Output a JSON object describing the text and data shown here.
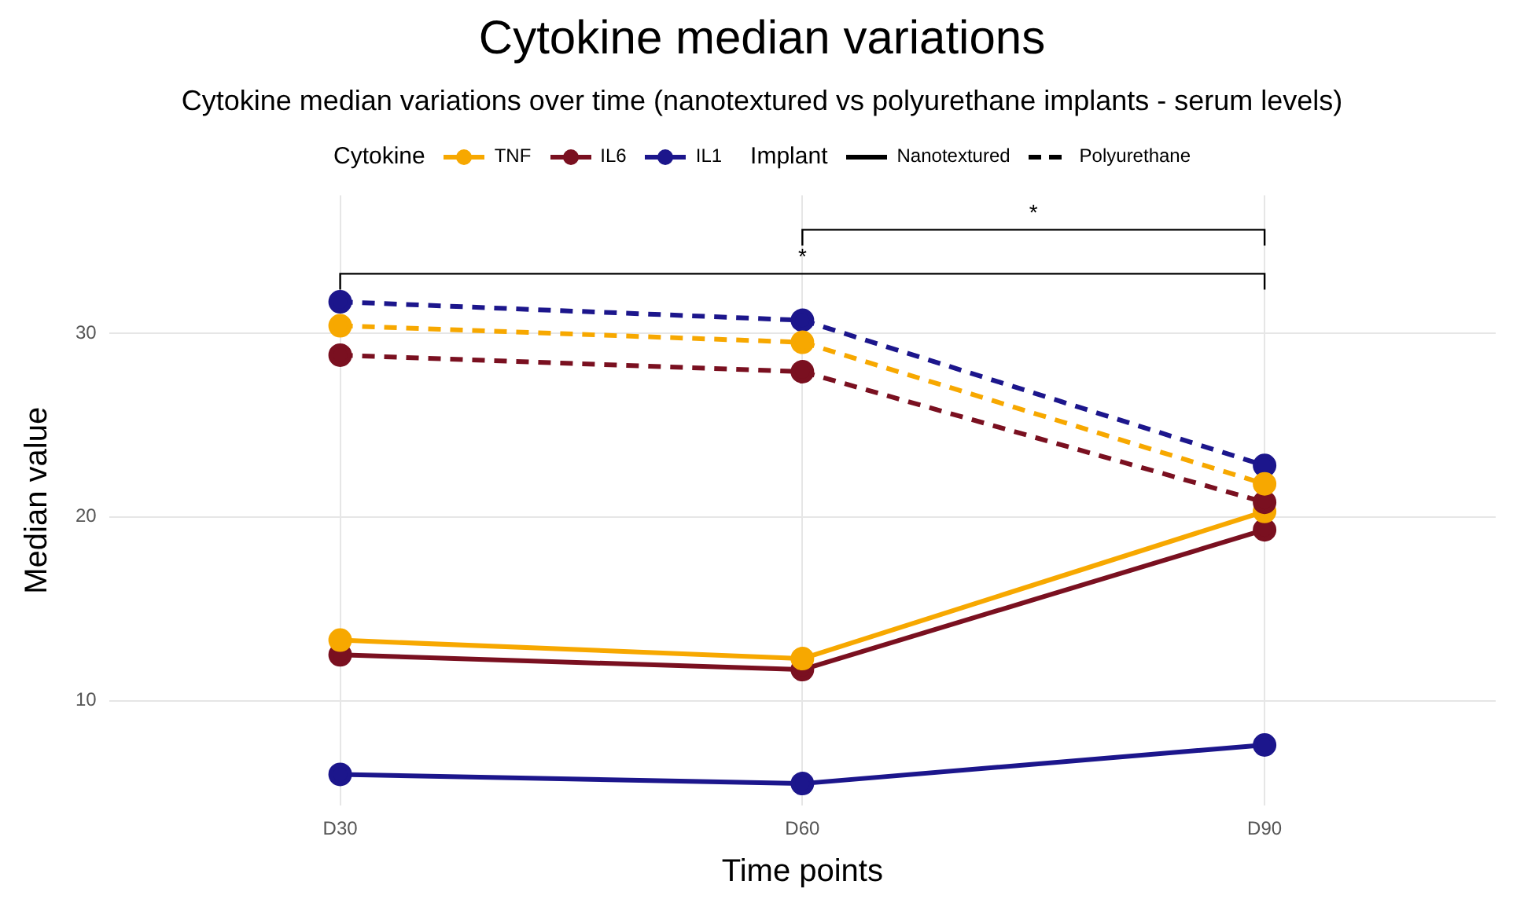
{
  "chart_data": {
    "type": "line",
    "title": "Cytokine median variations",
    "subtitle": "Cytokine median variations over time (nanotextured vs polyurethane implants - serum levels)",
    "xlabel": "Time points",
    "ylabel": "Median value",
    "legend_title": "Cytokine",
    "categories": [
      "D30",
      "D60",
      "D90"
    ],
    "series": [
      {
        "name": "TNF",
        "color": "#f7a800",
        "values": [
          13.3,
          12.3,
          20.3
        ],
        "line_style": "solid"
      },
      {
        "name": "IL6",
        "color": "#7a1020",
        "values": [
          12.5,
          11.7,
          19.3
        ],
        "line_style": "solid"
      },
      {
        "name": "IL1",
        "color": "#1c168c",
        "values": [
          6.0,
          5.5,
          7.6
        ],
        "line_style": "solid"
      },
      {
        "color": "#f7a800",
        "values": [
          30.4,
          29.5,
          21.8
        ],
        "line_style": "dashed"
      },
      {
        "color": "#7a1020",
        "values": [
          28.8,
          27.9,
          20.8
        ],
        "line_style": "dashed"
      },
      {
        "color": "#1c168c",
        "values": [
          31.7,
          30.7,
          22.8
        ],
        "line_style": "dashed"
      }
    ],
    "annotations": [
      "Implant",
      "Nanotextured",
      "Polyurethane",
      "*",
      "*"
    ],
    "ylim": [
      4.3,
      37.5
    ],
    "yticks": [
      10,
      20,
      30
    ],
    "grid": true,
    "legend": "top",
    "marker": "circle"
  }
}
